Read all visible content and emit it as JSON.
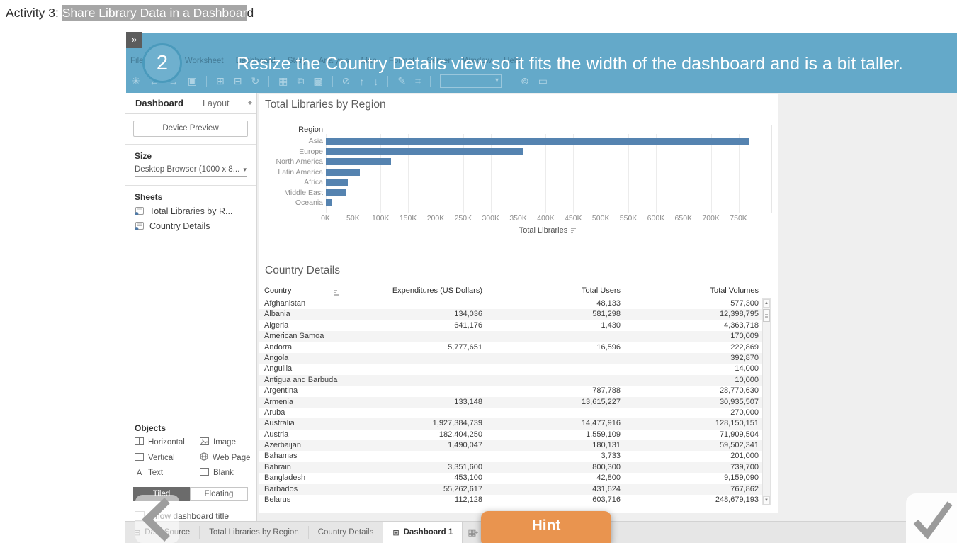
{
  "page_title": {
    "prefix": "Activity 3: ",
    "highlighted": "Share Library Data in a Dashboar",
    "suffix": "d"
  },
  "banner": {
    "expand_icon": "»",
    "step_number": "2",
    "instruction": "Resize the Country Details view so it fits the width of the dashboard and is a bit taller.",
    "color": "#64a9c9"
  },
  "menubar": {
    "items": [
      "File",
      "Data",
      "Worksheet",
      "Dashboard",
      "Story",
      "Analysis",
      "Map",
      "Format",
      "Server",
      "Window",
      "Help"
    ]
  },
  "toolbar": {
    "icons": [
      "tableau-logo-icon",
      "undo-icon",
      "redo-icon",
      "save-icon",
      "sep",
      "add-data-icon",
      "pause-updates-icon",
      "auto-updates-icon",
      "sep",
      "new-worksheet-icon",
      "duplicate-icon",
      "clear-sheet-icon",
      "sep",
      "highlight-icon",
      "sort-ascending-icon",
      "sort-descending-icon",
      "sep",
      "format-icon",
      "label-icon",
      "sep",
      "fit-dropdown",
      "sep",
      "fix-axes-icon",
      "presentation-icon"
    ]
  },
  "sidebar": {
    "tabs": [
      {
        "label": "Dashboard",
        "active": true
      },
      {
        "label": "Layout",
        "active": false
      }
    ],
    "device_preview_label": "Device Preview",
    "size_header": "Size",
    "size_value": "Desktop Browser (1000 x 8...",
    "sheets_header": "Sheets",
    "sheets": [
      "Total Libraries by R...",
      "Country Details"
    ],
    "objects_header": "Objects",
    "objects": [
      {
        "label": "Horizontal",
        "icon": "horizontal-layout-icon"
      },
      {
        "label": "Image",
        "icon": "image-icon"
      },
      {
        "label": "Vertical",
        "icon": "vertical-layout-icon"
      },
      {
        "label": "Web Page",
        "icon": "webpage-icon"
      },
      {
        "label": "Text",
        "icon": "text-icon"
      },
      {
        "label": "Blank",
        "icon": "blank-icon"
      }
    ],
    "tiled_label": "Tiled",
    "floating_label": "Floating",
    "show_title_label": "Show dashboard title"
  },
  "chart_data": {
    "type": "bar",
    "orientation": "horizontal",
    "title": "Total Libraries by Region",
    "category_header": "Region",
    "categories": [
      "Asia",
      "Europe",
      "North America",
      "Latin America",
      "Africa",
      "Middle East",
      "Oceania"
    ],
    "values": [
      770000,
      358000,
      119000,
      63000,
      40000,
      37000,
      12000
    ],
    "xlabel": "Total Libraries",
    "x_ticks": [
      "0K",
      "50K",
      "100K",
      "150K",
      "200K",
      "250K",
      "300K",
      "350K",
      "400K",
      "450K",
      "500K",
      "550K",
      "600K",
      "650K",
      "700K",
      "750K"
    ],
    "xlim": [
      0,
      810000
    ],
    "grid": true,
    "bar_color": "#5583b0"
  },
  "table": {
    "title": "Country Details",
    "columns": [
      "Country",
      "Expenditures  (US Dollars)",
      "Total Users",
      "Total Volumes"
    ],
    "rows": [
      [
        "Afghanistan",
        "",
        "48,133",
        "577,300"
      ],
      [
        "Albania",
        "134,036",
        "581,298",
        "12,398,795"
      ],
      [
        "Algeria",
        "641,176",
        "1,430",
        "4,363,718"
      ],
      [
        "American Samoa",
        "",
        "",
        "170,009"
      ],
      [
        "Andorra",
        "5,777,651",
        "16,596",
        "222,869"
      ],
      [
        "Angola",
        "",
        "",
        "392,870"
      ],
      [
        "Anguilla",
        "",
        "",
        "14,000"
      ],
      [
        "Antigua and Barbuda",
        "",
        "",
        "10,000"
      ],
      [
        "Argentina",
        "",
        "787,788",
        "28,770,630"
      ],
      [
        "Armenia",
        "133,148",
        "13,615,227",
        "30,935,507"
      ],
      [
        "Aruba",
        "",
        "",
        "270,000"
      ],
      [
        "Australia",
        "1,927,384,739",
        "14,477,916",
        "128,150,151"
      ],
      [
        "Austria",
        "182,404,250",
        "1,559,109",
        "71,909,504"
      ],
      [
        "Azerbaijan",
        "1,490,047",
        "180,131",
        "59,502,341"
      ],
      [
        "Bahamas",
        "",
        "3,733",
        "201,000"
      ],
      [
        "Bahrain",
        "3,351,600",
        "800,300",
        "739,700"
      ],
      [
        "Bangladesh",
        "453,100",
        "42,800",
        "9,159,090"
      ],
      [
        "Barbados",
        "55,262,617",
        "431,624",
        "767,862"
      ],
      [
        "Belarus",
        "112,128",
        "603,716",
        "248,679,193"
      ]
    ]
  },
  "bottom_bar": {
    "tabs": [
      {
        "label": "Data Source",
        "icon": "data-source-icon",
        "active": false
      },
      {
        "label": "Total Libraries by Region",
        "active": false
      },
      {
        "label": "Country Details",
        "active": false
      },
      {
        "label": "Dashboard 1",
        "icon": "dashboard-grid-icon",
        "active": true
      }
    ],
    "action_icons": [
      "new-worksheet-icon",
      "new-dashboard-icon",
      "new-story-icon"
    ]
  },
  "overlay": {
    "hint_label": "Hint",
    "hint_color": "#e9944f"
  },
  "colors": {
    "banner_blue": "#64a9c9",
    "bar_blue": "#5583b0",
    "hint_orange": "#e9944f",
    "title_highlight": "#a6a6a6"
  }
}
